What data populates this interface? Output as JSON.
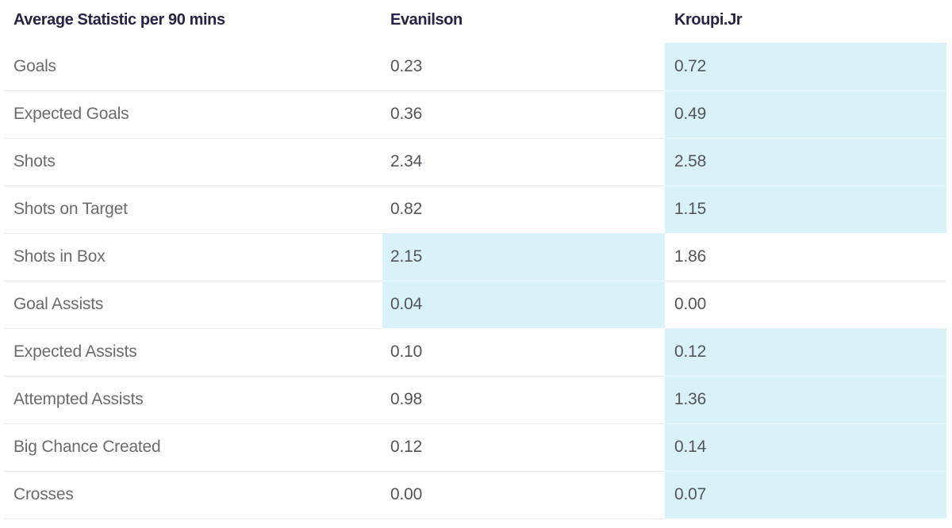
{
  "colors": {
    "background": "#ffffff",
    "highlight": "#d9f2f9",
    "header_text": "#272345",
    "label_text": "#6a6b6f",
    "value_text": "#53555a",
    "divider": "#ebecec"
  },
  "table": {
    "columns": [
      {
        "key": "stat",
        "label": "Average Statistic per 90 mins"
      },
      {
        "key": "player1",
        "label": "Evanilson"
      },
      {
        "key": "player2",
        "label": "Kroupi.Jr"
      }
    ],
    "rows": [
      {
        "stat": "Goals",
        "player1": "0.23",
        "player2": "0.72",
        "highlight": "player2"
      },
      {
        "stat": "Expected Goals",
        "player1": "0.36",
        "player2": "0.49",
        "highlight": "player2"
      },
      {
        "stat": "Shots",
        "player1": "2.34",
        "player2": "2.58",
        "highlight": "player2"
      },
      {
        "stat": "Shots on Target",
        "player1": "0.82",
        "player2": "1.15",
        "highlight": "player2"
      },
      {
        "stat": "Shots in Box",
        "player1": "2.15",
        "player2": "1.86",
        "highlight": "player1"
      },
      {
        "stat": "Goal Assists",
        "player1": "0.04",
        "player2": "0.00",
        "highlight": "player1"
      },
      {
        "stat": "Expected Assists",
        "player1": "0.10",
        "player2": "0.12",
        "highlight": "player2"
      },
      {
        "stat": "Attempted Assists",
        "player1": "0.98",
        "player2": "1.36",
        "highlight": "player2"
      },
      {
        "stat": "Big Chance Created",
        "player1": "0.12",
        "player2": "0.14",
        "highlight": "player2"
      },
      {
        "stat": "Crosses",
        "player1": "0.00",
        "player2": "0.07",
        "highlight": "player2"
      }
    ]
  }
}
